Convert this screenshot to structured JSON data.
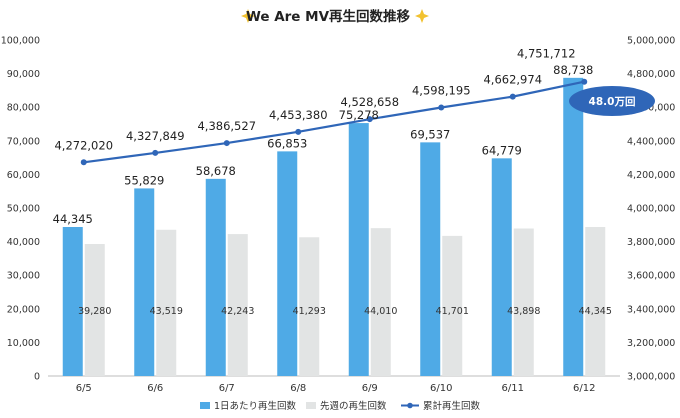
{
  "chart_data": {
    "type": "bar",
    "title": "We Are MV再生回数推移",
    "categories": [
      "6/5",
      "6/6",
      "6/7",
      "6/8",
      "6/9",
      "6/10",
      "6/11",
      "6/12"
    ],
    "series": [
      {
        "name": "1日あたり再生回数",
        "type": "bar",
        "axis": "left",
        "values": [
          44345,
          55829,
          58678,
          66853,
          75278,
          69537,
          64779,
          88738
        ]
      },
      {
        "name": "先週の再生回数",
        "type": "bar",
        "axis": "left",
        "values": [
          39280,
          43519,
          42243,
          41293,
          44010,
          41701,
          43898,
          44345
        ]
      },
      {
        "name": "累計再生回数",
        "type": "line",
        "axis": "right",
        "values": [
          4272020,
          4327849,
          4386527,
          4453380,
          4528658,
          4598195,
          4662974,
          4751712
        ]
      }
    ],
    "y_left": {
      "min": 0,
      "max": 100000,
      "step": 10000
    },
    "y_right": {
      "min": 3000000,
      "max": 5000000,
      "step": 200000
    },
    "annotation": "48.0万回",
    "colors": {
      "daily": "#4FAAE6",
      "lastweek": "#E2E4E4",
      "cumulative": "#2F66B8",
      "callout": "#2F66B8"
    },
    "legend_position": "bottom",
    "grid": false
  }
}
